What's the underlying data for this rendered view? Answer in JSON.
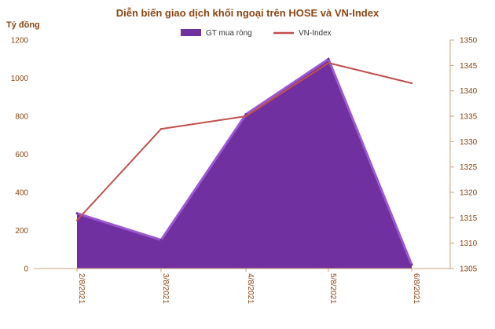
{
  "chart_data": {
    "type": "area",
    "title": "Diễn biến giao dịch khối ngoại trên HOSE và VN-Index",
    "ylabel": "Tỷ đồng",
    "categories": [
      "2/8/2021",
      "3/8/2021",
      "4/8/2021",
      "5/8/2021",
      "6/8/2021"
    ],
    "series": [
      {
        "name": "GT mua ròng",
        "kind": "area",
        "axis": "left",
        "color": "#7030A0",
        "values": [
          290,
          150,
          810,
          1100,
          20
        ]
      },
      {
        "name": "VN-Index",
        "kind": "line",
        "axis": "right",
        "color": "#C0504D",
        "values": [
          1314.5,
          1332.5,
          1335.0,
          1345.5,
          1341.5
        ]
      }
    ],
    "y_left": {
      "min": 0,
      "max": 1200,
      "ticks": [
        0,
        200,
        400,
        600,
        800,
        1000,
        1200
      ]
    },
    "y_right": {
      "min": 1305,
      "max": 1350,
      "ticks": [
        1305,
        1310,
        1315,
        1320,
        1325,
        1330,
        1335,
        1340,
        1345,
        1350
      ]
    },
    "grid": false,
    "legend_position": "top"
  }
}
